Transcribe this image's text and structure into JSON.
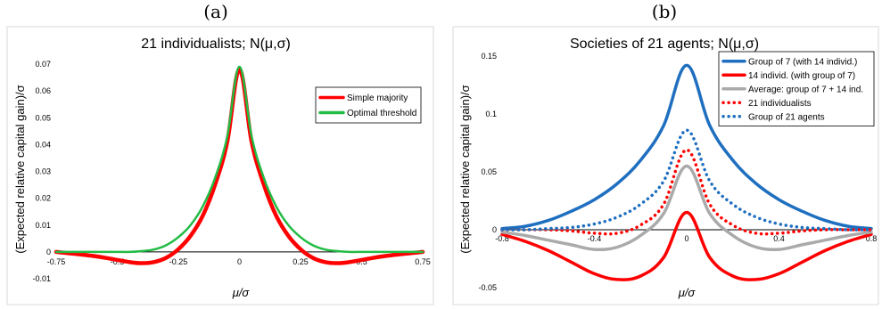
{
  "panels": {
    "a": {
      "label": "(a)"
    },
    "b": {
      "label": "(b)"
    }
  },
  "chart_data": [
    {
      "type": "line",
      "title": "21 individualists; N(μ,σ)",
      "xlabel": "μ/σ",
      "ylabel": "(Expected relative capital gain)/σ",
      "xlim": [
        -0.75,
        0.75
      ],
      "ylim": [
        -0.01,
        0.07
      ],
      "x_ticks": [
        "-0.75",
        "-0.5",
        "-0.25",
        "0",
        "0.25",
        "0.5",
        "0.75"
      ],
      "y_ticks": [
        "-0.01",
        "0",
        "0.01",
        "0.02",
        "0.03",
        "0.04",
        "0.05",
        "0.06",
        "0.07"
      ],
      "grid": false,
      "legend": "top-right",
      "x": [
        -0.75,
        -0.6,
        -0.5,
        -0.45,
        -0.4,
        -0.35,
        -0.3,
        -0.25,
        -0.2,
        -0.15,
        -0.1,
        -0.05,
        0,
        0.05,
        0.1,
        0.15,
        0.2,
        0.25,
        0.3,
        0.35,
        0.4,
        0.45,
        0.5,
        0.6,
        0.75
      ],
      "series": [
        {
          "name": "Simple majority",
          "color": "#ff0000",
          "y": [
            0,
            -0.0015,
            -0.003,
            -0.0038,
            -0.0042,
            -0.0038,
            -0.0022,
            0.001,
            0.006,
            0.0135,
            0.025,
            0.041,
            0.068,
            0.041,
            0.025,
            0.0135,
            0.006,
            0.001,
            -0.0022,
            -0.0038,
            -0.0042,
            -0.0038,
            -0.003,
            -0.0015,
            0
          ]
        },
        {
          "name": "Optimal threshold",
          "color": "#22bb44",
          "y": [
            0,
            0,
            0,
            0,
            0.0003,
            0.0009,
            0.0025,
            0.0055,
            0.01,
            0.017,
            0.0275,
            0.043,
            0.069,
            0.043,
            0.0275,
            0.017,
            0.01,
            0.0055,
            0.0025,
            0.0009,
            0.0003,
            0,
            0,
            0,
            0
          ]
        }
      ]
    },
    {
      "type": "line",
      "title": "Societies of 21 agents; N(μ,σ)",
      "xlabel": "μ/σ",
      "ylabel": "(Expected relative capital gain)/σ",
      "xlim": [
        -0.8,
        0.8
      ],
      "ylim": [
        -0.05,
        0.15
      ],
      "x_ticks": [
        "-0.8",
        "-0.4",
        "0",
        "0.4",
        "0.8"
      ],
      "y_ticks": [
        "-0.05",
        "0",
        "0.05",
        "0.1",
        "0.15"
      ],
      "grid": false,
      "legend": "top-right",
      "x": [
        -0.8,
        -0.7,
        -0.6,
        -0.5,
        -0.4,
        -0.3,
        -0.2,
        -0.1,
        0,
        0.1,
        0.2,
        0.3,
        0.4,
        0.5,
        0.6,
        0.7,
        0.8
      ],
      "series": [
        {
          "name": "Group of 7 (with 14 individ.)",
          "color": "#1f6fc0",
          "style": "solid",
          "y": [
            0.001,
            0.003,
            0.008,
            0.016,
            0.026,
            0.04,
            0.06,
            0.09,
            0.142,
            0.09,
            0.06,
            0.04,
            0.026,
            0.016,
            0.008,
            0.003,
            0.001
          ]
        },
        {
          "name": "14 individ. (with group of 7)",
          "color": "#ff0000",
          "style": "solid",
          "y": [
            -0.004,
            -0.01,
            -0.018,
            -0.028,
            -0.038,
            -0.043,
            -0.04,
            -0.024,
            0.015,
            -0.024,
            -0.04,
            -0.043,
            -0.038,
            -0.028,
            -0.018,
            -0.01,
            -0.004
          ]
        },
        {
          "name": "Average: group of 7 + 14 ind.",
          "color": "#aaaaaa",
          "style": "solid",
          "y": [
            -0.002,
            -0.005,
            -0.009,
            -0.013,
            -0.017,
            -0.015,
            -0.005,
            0.014,
            0.055,
            0.014,
            -0.005,
            -0.015,
            -0.017,
            -0.013,
            -0.009,
            -0.005,
            -0.002
          ]
        },
        {
          "name": "21 individualists",
          "color": "#ff0000",
          "style": "dotted",
          "y": [
            0,
            0,
            0,
            -0.001,
            -0.003,
            -0.003,
            0.004,
            0.022,
            0.069,
            0.022,
            0.004,
            -0.003,
            -0.003,
            -0.001,
            0,
            0,
            0
          ]
        },
        {
          "name": "Group of 21 agents",
          "color": "#1f6fc0",
          "style": "dotted",
          "y": [
            0,
            0,
            0.001,
            0.002,
            0.005,
            0.011,
            0.022,
            0.042,
            0.086,
            0.042,
            0.022,
            0.011,
            0.005,
            0.002,
            0.001,
            0,
            0
          ]
        }
      ]
    }
  ]
}
